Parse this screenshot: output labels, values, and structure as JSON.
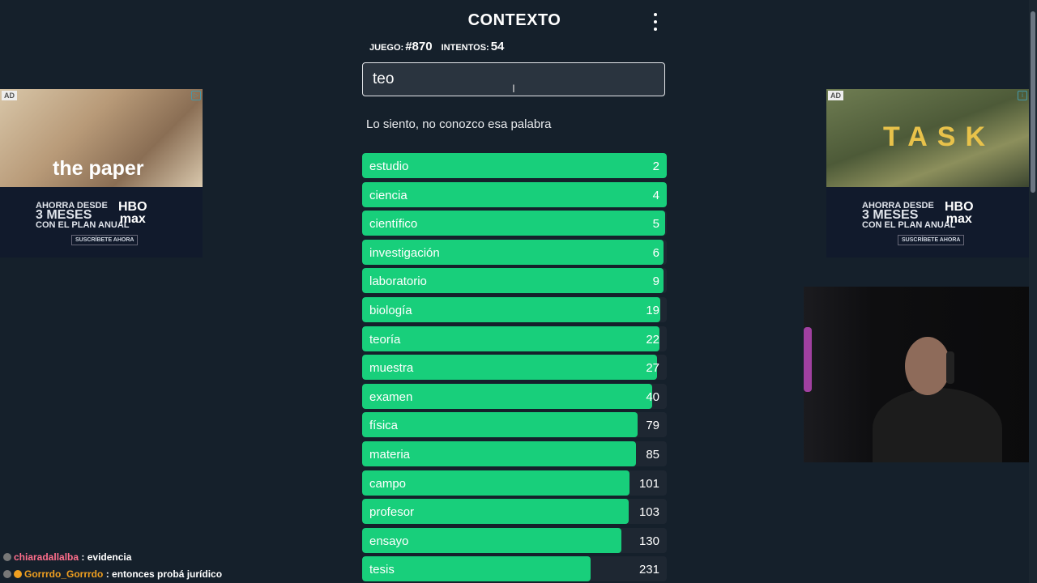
{
  "header": {
    "title": "CONTEXTO"
  },
  "stats": {
    "game_label": "JUEGO:",
    "game_value": "#870",
    "attempts_label": "INTENTOS:",
    "attempts_value": "54"
  },
  "input": {
    "value": "teo"
  },
  "message": "Lo siento, no conozco esa palabra",
  "guesses": [
    {
      "word": "estudio",
      "rank": "2",
      "fill": 1.0
    },
    {
      "word": "ciencia",
      "rank": "4",
      "fill": 1.0
    },
    {
      "word": "científico",
      "rank": "5",
      "fill": 0.995
    },
    {
      "word": "investigación",
      "rank": "6",
      "fill": 0.99
    },
    {
      "word": "laboratorio",
      "rank": "9",
      "fill": 0.99
    },
    {
      "word": "biología",
      "rank": "19",
      "fill": 0.979
    },
    {
      "word": "teoría",
      "rank": "22",
      "fill": 0.976
    },
    {
      "word": "muestra",
      "rank": "27",
      "fill": 0.968
    },
    {
      "word": "examen",
      "rank": "40",
      "fill": 0.952
    },
    {
      "word": "física",
      "rank": "79",
      "fill": 0.904
    },
    {
      "word": "materia",
      "rank": "85",
      "fill": 0.899
    },
    {
      "word": "campo",
      "rank": "101",
      "fill": 0.878
    },
    {
      "word": "profesor",
      "rank": "103",
      "fill": 0.875
    },
    {
      "word": "ensayo",
      "rank": "130",
      "fill": 0.85
    },
    {
      "word": "tesis",
      "rank": "231",
      "fill": 0.75
    }
  ],
  "ads": {
    "badge": "AD",
    "left": {
      "headline": "the paper",
      "promo_line1": "AHORRA DESDE",
      "promo_line2": "3 MESES",
      "promo_line3": "CON EL PLAN ANUAL",
      "brand_line1": "HBO",
      "brand_line2": "max",
      "cta": "SUSCRÍBETE AHORA"
    },
    "right": {
      "headline": "TASK",
      "promo_line1": "AHORRA DESDE",
      "promo_line2": "3 MESES",
      "promo_line3": "CON EL PLAN ANUAL",
      "brand_line1": "HBO",
      "brand_line2": "max",
      "cta": "SUSCRÍBETE AHORA"
    }
  },
  "chat": [
    {
      "user": "chiaradallalba",
      "message": ": evidencia"
    },
    {
      "user": "Gorrrdo_Gorrrdo",
      "message": ": entonces probá jurídico"
    }
  ],
  "colors": {
    "background": "#15202b",
    "bar_fill": "#18cf7b",
    "bar_track": "#1e2732"
  }
}
